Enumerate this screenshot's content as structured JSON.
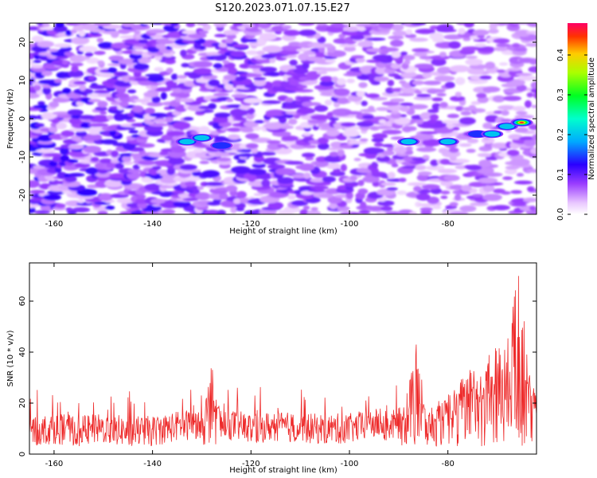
{
  "figure": {
    "title": "S120.2023.071.07.15.E27"
  },
  "chart_data": [
    {
      "type": "heatmap",
      "title": "S120.2023.071.07.15.E27",
      "xlabel": "Height of straight line (km)",
      "ylabel": "Frequency (Hz)",
      "xlim": [
        -165,
        -62
      ],
      "ylim": [
        -25,
        25
      ],
      "x_ticks": [
        -160,
        -140,
        -120,
        -100,
        -80
      ],
      "y_ticks": [
        -20,
        -10,
        0,
        10,
        20
      ],
      "x_tick_labels": [
        "-160",
        "-140",
        "-120",
        "-100",
        "-80"
      ],
      "y_tick_labels": [
        "-20",
        "-10",
        "0",
        "10",
        "20"
      ],
      "colorbar": {
        "label": "Normalized spectral amplitude",
        "range": [
          0,
          0.48
        ],
        "ticks": [
          0.0,
          0.1,
          0.2,
          0.3,
          0.4
        ],
        "tick_labels": [
          "0.0",
          "0.1",
          "0.2",
          "0.3",
          "0.4"
        ],
        "colormap": "gist_rainbow_r"
      },
      "features": [
        {
          "x": -133,
          "y": -6,
          "amplitude": 0.22
        },
        {
          "x": -130,
          "y": -5,
          "amplitude": 0.2
        },
        {
          "x": -126,
          "y": -7,
          "amplitude": 0.18
        },
        {
          "x": -88,
          "y": -6,
          "amplitude": 0.26
        },
        {
          "x": -80,
          "y": -6,
          "amplitude": 0.26
        },
        {
          "x": -74,
          "y": -4,
          "amplitude": 0.18
        },
        {
          "x": -71,
          "y": -4,
          "amplitude": 0.27
        },
        {
          "x": -68,
          "y": -2,
          "amplitude": 0.2
        },
        {
          "x": -65,
          "y": -1,
          "amplitude": 0.46
        }
      ]
    },
    {
      "type": "line",
      "xlabel": "Height of straight line (km)",
      "ylabel": "SNR (10 * v/v)",
      "xlim": [
        -165,
        -62
      ],
      "ylim": [
        0,
        75
      ],
      "x_ticks": [
        -160,
        -140,
        -120,
        -100,
        -80
      ],
      "y_ticks": [
        0,
        20,
        40,
        60
      ],
      "x_tick_labels": [
        "-160",
        "-140",
        "-120",
        "-100",
        "-80"
      ],
      "y_tick_labels": [
        "0",
        "20",
        "40",
        "60"
      ],
      "color": "#ee2b2b",
      "series": [
        {
          "x": [
            -165,
            -160,
            -155,
            -150,
            -145,
            -140,
            -135,
            -130,
            -128,
            -127,
            -125,
            -120,
            -115,
            -110,
            -105,
            -100,
            -95,
            -92,
            -90,
            -87,
            -86,
            -85,
            -84,
            -82,
            -80,
            -78,
            -76,
            -74,
            -72,
            -70,
            -68,
            -67,
            -66,
            -65,
            -64,
            -63
          ],
          "y": [
            9,
            10,
            9,
            10,
            9,
            9,
            11,
            12,
            34,
            20,
            12,
            10,
            11,
            10,
            10,
            10,
            12,
            11,
            12,
            35,
            44,
            20,
            15,
            18,
            22,
            25,
            30,
            30,
            35,
            40,
            42,
            50,
            74,
            60,
            38,
            25
          ]
        }
      ]
    }
  ]
}
